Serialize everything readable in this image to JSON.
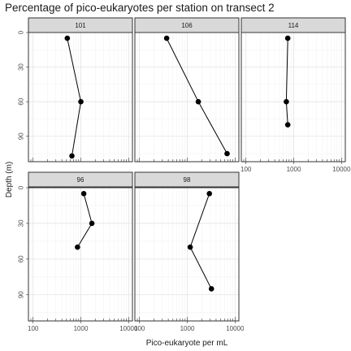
{
  "chart_data": {
    "type": "line",
    "title": "Percentage of pico-eukaryotes per station on transect 2",
    "xlabel": "Pico-eukaryote per mL",
    "ylabel": "Depth (m)",
    "x_scale": "log10",
    "x_ticks": [
      100,
      1000,
      10000
    ],
    "x_tick_labels": [
      "100",
      "1000",
      "10000"
    ],
    "xlim": [
      80,
      12000
    ],
    "y_reversed": true,
    "y_ticks": [
      0,
      30,
      60,
      90
    ],
    "y_tick_labels": [
      "0",
      "30",
      "60",
      "90"
    ],
    "ylim": [
      0,
      112
    ],
    "grid": true,
    "panels": [
      {
        "station": "101",
        "points": [
          {
            "x": 520,
            "y": 5
          },
          {
            "x": 1000,
            "y": 60
          },
          {
            "x": 650,
            "y": 107
          }
        ]
      },
      {
        "station": "106",
        "points": [
          {
            "x": 370,
            "y": 5
          },
          {
            "x": 1700,
            "y": 60
          },
          {
            "x": 6800,
            "y": 105
          }
        ]
      },
      {
        "station": "114",
        "points": [
          {
            "x": 750,
            "y": 5
          },
          {
            "x": 700,
            "y": 60
          },
          {
            "x": 750,
            "y": 80
          }
        ]
      },
      {
        "station": "96",
        "points": [
          {
            "x": 1150,
            "y": 5
          },
          {
            "x": 1700,
            "y": 30
          },
          {
            "x": 850,
            "y": 50
          }
        ]
      },
      {
        "station": "98",
        "points": [
          {
            "x": 2900,
            "y": 5
          },
          {
            "x": 1150,
            "y": 50
          },
          {
            "x": 3200,
            "y": 85
          }
        ]
      }
    ]
  }
}
